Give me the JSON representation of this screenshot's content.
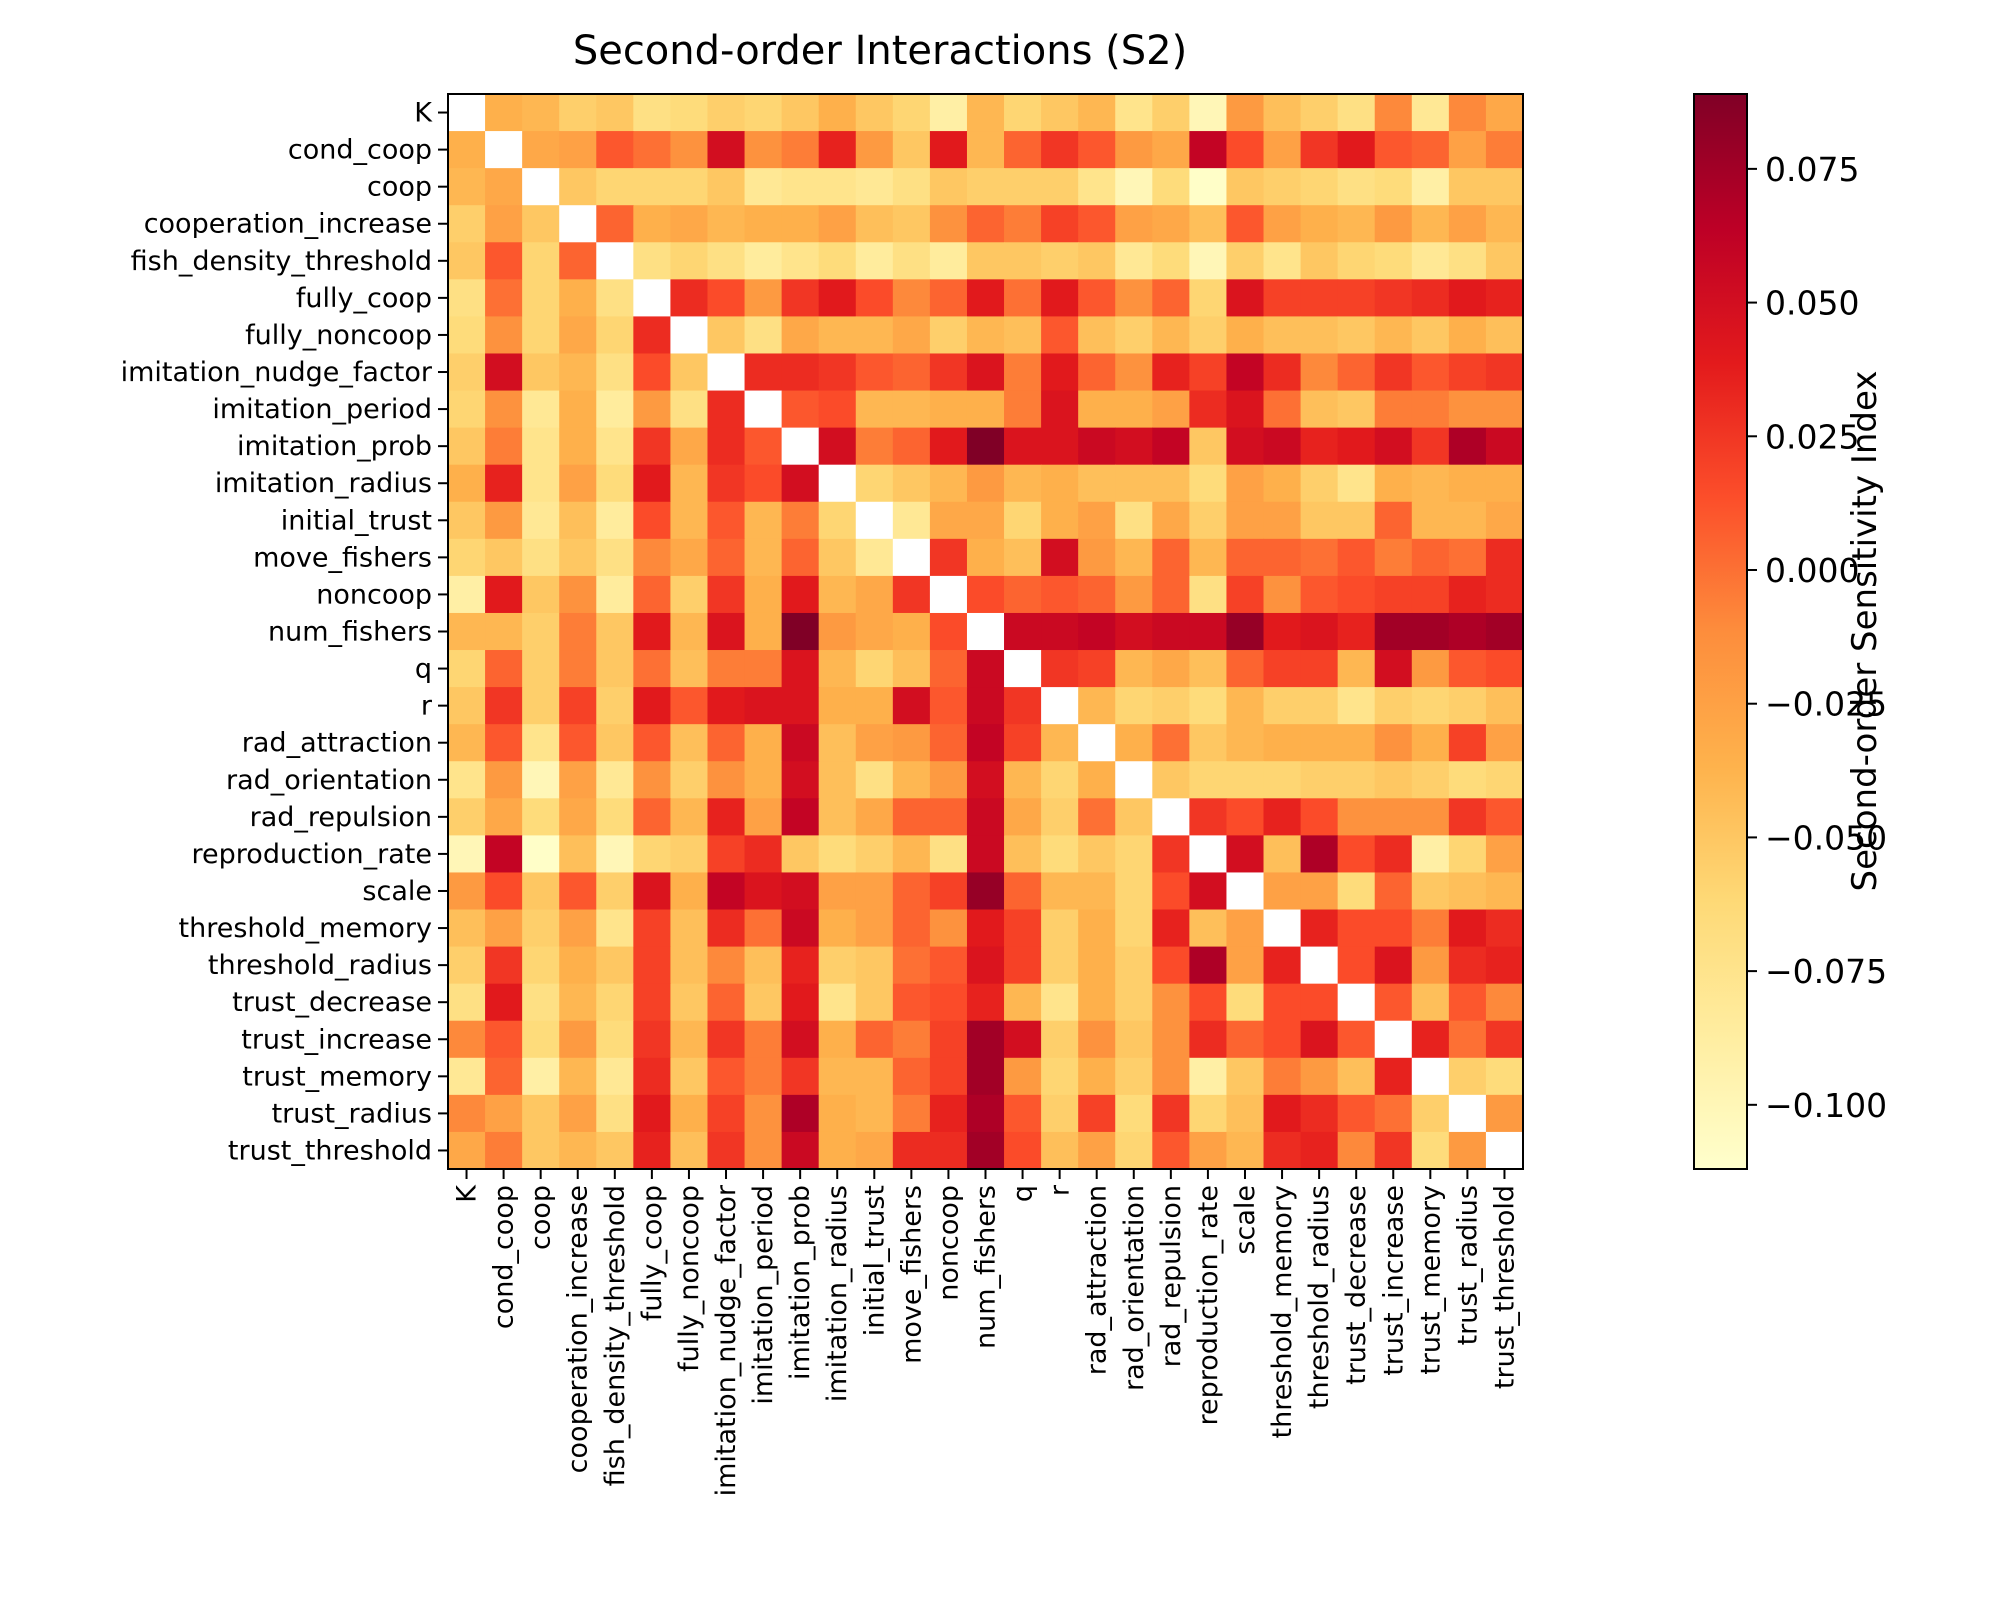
{
  "chart_data": {
    "type": "heatmap",
    "title": "Second-order Interactions (S2)",
    "xlabel": "",
    "ylabel": "",
    "colorbar_label": "Second-order Sensitivity Index",
    "colormap": "YlOrRd",
    "vmin": -0.112,
    "vmax": 0.089,
    "colorbar_ticks": [
      {
        "value": 0.075,
        "label": "0.075"
      },
      {
        "value": 0.05,
        "label": "0.050"
      },
      {
        "value": 0.025,
        "label": "0.025"
      },
      {
        "value": 0.0,
        "label": "0.000"
      },
      {
        "value": -0.025,
        "label": "−0.025"
      },
      {
        "value": -0.05,
        "label": "−0.050"
      },
      {
        "value": -0.075,
        "label": "−0.075"
      },
      {
        "value": -0.1,
        "label": "−0.100"
      }
    ],
    "labels": [
      "K",
      "cond_coop",
      "coop",
      "cooperation_increase",
      "fish_density_threshold",
      "fully_coop",
      "fully_noncoop",
      "imitation_nudge_factor",
      "imitation_period",
      "imitation_prob",
      "imitation_radius",
      "initial_trust",
      "move_fishers",
      "noncoop",
      "num_fishers",
      "q",
      "r",
      "rad_attraction",
      "rad_orientation",
      "rad_repulsion",
      "reproduction_rate",
      "scale",
      "threshold_memory",
      "threshold_radius",
      "trust_decrease",
      "trust_increase",
      "trust_memory",
      "trust_radius",
      "trust_threshold"
    ],
    "diagonal": "not shown (white)",
    "matrix": [
      [
        null,
        -0.035,
        -0.04,
        -0.055,
        -0.05,
        -0.07,
        -0.065,
        -0.055,
        -0.06,
        -0.05,
        -0.035,
        -0.05,
        -0.06,
        -0.09,
        -0.04,
        -0.06,
        -0.05,
        -0.04,
        -0.075,
        -0.055,
        -0.1,
        -0.02,
        -0.045,
        -0.055,
        -0.07,
        -0.01,
        -0.08,
        -0.01,
        -0.03
      ],
      [
        -0.035,
        null,
        -0.03,
        -0.025,
        0.01,
        0.0,
        -0.015,
        0.05,
        -0.015,
        -0.005,
        0.035,
        -0.02,
        -0.05,
        0.04,
        -0.04,
        0.005,
        0.025,
        0.01,
        -0.02,
        -0.03,
        0.06,
        0.015,
        -0.025,
        0.025,
        0.04,
        0.01,
        0.005,
        -0.025,
        -0.005
      ],
      [
        -0.04,
        -0.03,
        null,
        -0.05,
        -0.06,
        -0.06,
        -0.06,
        -0.05,
        -0.08,
        -0.075,
        -0.075,
        -0.08,
        -0.07,
        -0.05,
        -0.055,
        -0.055,
        -0.055,
        -0.075,
        -0.1,
        -0.065,
        -0.11,
        -0.05,
        -0.055,
        -0.06,
        -0.07,
        -0.065,
        -0.09,
        -0.05,
        -0.05
      ],
      [
        -0.055,
        -0.025,
        -0.05,
        null,
        0.005,
        -0.035,
        -0.03,
        -0.04,
        -0.035,
        -0.035,
        -0.025,
        -0.045,
        -0.05,
        -0.015,
        0.005,
        -0.005,
        0.02,
        0.01,
        -0.025,
        -0.03,
        -0.045,
        0.01,
        -0.025,
        -0.035,
        -0.04,
        -0.02,
        -0.04,
        -0.025,
        -0.04
      ],
      [
        -0.05,
        0.01,
        -0.06,
        0.005,
        null,
        -0.07,
        -0.06,
        -0.07,
        -0.085,
        -0.075,
        -0.065,
        -0.085,
        -0.07,
        -0.085,
        -0.05,
        -0.05,
        -0.055,
        -0.05,
        -0.08,
        -0.065,
        -0.1,
        -0.055,
        -0.075,
        -0.05,
        -0.06,
        -0.065,
        -0.08,
        -0.07,
        -0.05
      ],
      [
        -0.07,
        0.0,
        -0.06,
        -0.035,
        -0.07,
        null,
        0.03,
        0.015,
        -0.02,
        0.025,
        0.04,
        0.015,
        -0.01,
        0.005,
        0.04,
        0.0,
        0.04,
        0.01,
        -0.015,
        0.005,
        -0.06,
        0.045,
        0.02,
        0.02,
        0.02,
        0.025,
        0.03,
        0.04,
        0.035
      ],
      [
        -0.065,
        -0.015,
        -0.06,
        -0.03,
        -0.06,
        0.03,
        null,
        -0.05,
        -0.07,
        -0.03,
        -0.04,
        -0.04,
        -0.03,
        -0.055,
        -0.04,
        -0.045,
        0.01,
        -0.045,
        -0.055,
        -0.04,
        -0.055,
        -0.035,
        -0.045,
        -0.045,
        -0.05,
        -0.04,
        -0.05,
        -0.035,
        -0.045
      ],
      [
        -0.055,
        0.05,
        -0.05,
        -0.04,
        -0.07,
        0.015,
        -0.05,
        null,
        0.03,
        0.03,
        0.025,
        0.01,
        0.005,
        0.025,
        0.045,
        -0.005,
        0.04,
        0.005,
        -0.015,
        0.035,
        0.02,
        0.06,
        0.03,
        -0.01,
        0.005,
        0.025,
        0.01,
        0.02,
        0.025
      ],
      [
        -0.06,
        -0.015,
        -0.08,
        -0.035,
        -0.085,
        -0.02,
        -0.07,
        0.03,
        null,
        0.01,
        0.015,
        -0.04,
        -0.04,
        -0.035,
        -0.035,
        -0.005,
        0.045,
        -0.035,
        -0.035,
        -0.025,
        0.03,
        0.045,
        0.0,
        -0.045,
        -0.05,
        -0.005,
        -0.005,
        -0.015,
        -0.015
      ],
      [
        -0.05,
        -0.005,
        -0.075,
        -0.035,
        -0.075,
        0.025,
        -0.03,
        0.03,
        0.01,
        null,
        0.05,
        -0.005,
        0.005,
        0.04,
        0.089,
        0.045,
        0.045,
        0.055,
        0.05,
        0.06,
        -0.05,
        0.05,
        0.055,
        0.035,
        0.04,
        0.05,
        0.025,
        0.07,
        0.055
      ],
      [
        -0.035,
        0.035,
        -0.075,
        -0.025,
        -0.065,
        0.04,
        -0.04,
        0.025,
        0.015,
        0.05,
        null,
        -0.06,
        -0.05,
        -0.04,
        -0.02,
        -0.04,
        -0.035,
        -0.045,
        -0.045,
        -0.045,
        -0.065,
        -0.025,
        -0.035,
        -0.055,
        -0.075,
        -0.035,
        -0.04,
        -0.035,
        -0.035
      ],
      [
        -0.05,
        -0.02,
        -0.08,
        -0.045,
        -0.085,
        0.015,
        -0.04,
        0.01,
        -0.04,
        -0.005,
        -0.06,
        null,
        -0.08,
        -0.03,
        -0.03,
        -0.06,
        -0.035,
        -0.025,
        -0.07,
        -0.03,
        -0.055,
        -0.025,
        -0.025,
        -0.05,
        -0.05,
        0.005,
        -0.04,
        -0.04,
        -0.03
      ],
      [
        -0.06,
        -0.05,
        -0.07,
        -0.05,
        -0.07,
        -0.01,
        -0.03,
        0.005,
        -0.04,
        0.005,
        -0.05,
        -0.08,
        null,
        0.025,
        -0.035,
        -0.045,
        0.05,
        -0.02,
        -0.04,
        0.005,
        -0.04,
        0.005,
        0.005,
        0.0,
        0.01,
        -0.005,
        0.005,
        0.0,
        0.03
      ],
      [
        -0.09,
        0.04,
        -0.05,
        -0.015,
        -0.085,
        0.005,
        -0.055,
        0.025,
        -0.035,
        0.04,
        -0.04,
        -0.03,
        0.025,
        null,
        0.015,
        0.005,
        0.01,
        0.005,
        -0.02,
        0.005,
        -0.07,
        0.02,
        -0.015,
        0.01,
        0.015,
        0.02,
        0.02,
        0.035,
        0.03
      ],
      [
        -0.04,
        -0.04,
        -0.055,
        -0.005,
        -0.05,
        0.04,
        -0.04,
        0.045,
        -0.035,
        0.089,
        -0.02,
        -0.03,
        -0.035,
        0.015,
        null,
        0.055,
        0.055,
        0.06,
        0.05,
        0.055,
        0.055,
        0.08,
        0.04,
        0.045,
        0.035,
        0.075,
        0.075,
        0.07,
        0.075
      ],
      [
        -0.06,
        0.005,
        -0.055,
        -0.005,
        -0.05,
        0.0,
        -0.045,
        -0.005,
        -0.005,
        0.045,
        -0.04,
        -0.06,
        -0.045,
        0.005,
        0.055,
        null,
        0.025,
        0.02,
        -0.04,
        -0.03,
        -0.045,
        0.005,
        0.02,
        0.02,
        -0.04,
        0.05,
        -0.02,
        0.01,
        0.015
      ],
      [
        -0.05,
        0.025,
        -0.055,
        0.02,
        -0.055,
        0.04,
        0.01,
        0.04,
        0.045,
        0.045,
        -0.035,
        -0.035,
        0.05,
        0.01,
        0.055,
        0.025,
        null,
        -0.04,
        -0.06,
        -0.055,
        -0.065,
        -0.04,
        -0.055,
        -0.055,
        -0.075,
        -0.055,
        -0.06,
        -0.055,
        -0.045
      ],
      [
        -0.04,
        0.01,
        -0.075,
        0.01,
        -0.05,
        0.01,
        -0.045,
        0.005,
        -0.035,
        0.055,
        -0.045,
        -0.025,
        -0.02,
        0.005,
        0.06,
        0.02,
        -0.04,
        null,
        -0.035,
        0.0,
        -0.05,
        -0.04,
        -0.035,
        -0.035,
        -0.035,
        -0.015,
        -0.035,
        0.02,
        -0.025
      ],
      [
        -0.075,
        -0.02,
        -0.1,
        -0.025,
        -0.08,
        -0.015,
        -0.055,
        -0.015,
        -0.035,
        0.05,
        -0.045,
        -0.07,
        -0.04,
        -0.02,
        0.05,
        -0.04,
        -0.06,
        -0.035,
        null,
        -0.05,
        -0.06,
        -0.06,
        -0.06,
        -0.055,
        -0.055,
        -0.05,
        -0.055,
        -0.065,
        -0.06
      ],
      [
        -0.055,
        -0.03,
        -0.065,
        -0.03,
        -0.065,
        0.005,
        -0.04,
        0.035,
        -0.025,
        0.06,
        -0.045,
        -0.03,
        0.005,
        0.005,
        0.055,
        -0.03,
        -0.055,
        0.0,
        -0.05,
        null,
        0.025,
        0.015,
        0.035,
        0.015,
        -0.015,
        -0.015,
        -0.015,
        0.025,
        0.01
      ],
      [
        -0.1,
        0.06,
        -0.11,
        -0.045,
        -0.1,
        -0.06,
        -0.055,
        0.02,
        0.03,
        -0.05,
        -0.065,
        -0.055,
        -0.04,
        -0.07,
        0.055,
        -0.045,
        -0.065,
        -0.05,
        -0.06,
        0.025,
        null,
        0.05,
        -0.045,
        0.07,
        0.015,
        0.03,
        -0.09,
        -0.06,
        -0.025
      ],
      [
        -0.02,
        0.015,
        -0.05,
        0.01,
        -0.055,
        0.045,
        -0.035,
        0.06,
        0.045,
        0.05,
        -0.025,
        -0.025,
        0.005,
        0.02,
        0.08,
        0.005,
        -0.04,
        -0.04,
        -0.06,
        0.015,
        0.05,
        null,
        -0.025,
        -0.025,
        -0.065,
        0.005,
        -0.05,
        -0.045,
        -0.04
      ],
      [
        -0.045,
        -0.025,
        -0.055,
        -0.025,
        -0.075,
        0.02,
        -0.045,
        0.03,
        0.0,
        0.055,
        -0.035,
        -0.025,
        0.005,
        -0.015,
        0.04,
        0.02,
        -0.055,
        -0.035,
        -0.06,
        0.035,
        -0.045,
        -0.025,
        null,
        0.035,
        0.015,
        0.015,
        -0.005,
        0.04,
        0.03
      ],
      [
        -0.055,
        0.025,
        -0.06,
        -0.035,
        -0.05,
        0.02,
        -0.045,
        -0.01,
        -0.045,
        0.035,
        -0.055,
        -0.05,
        0.0,
        0.01,
        0.045,
        0.02,
        -0.055,
        -0.035,
        -0.055,
        0.015,
        0.07,
        -0.025,
        0.035,
        null,
        0.015,
        0.045,
        -0.02,
        0.03,
        0.035
      ],
      [
        -0.07,
        0.04,
        -0.07,
        -0.04,
        -0.06,
        0.02,
        -0.05,
        0.005,
        -0.05,
        0.04,
        -0.075,
        -0.05,
        0.01,
        0.015,
        0.035,
        -0.04,
        -0.075,
        -0.035,
        -0.055,
        -0.015,
        0.015,
        -0.065,
        0.015,
        0.015,
        null,
        0.01,
        -0.045,
        0.01,
        -0.01
      ],
      [
        -0.01,
        0.01,
        -0.065,
        -0.02,
        -0.065,
        0.025,
        -0.04,
        0.025,
        -0.005,
        0.05,
        -0.035,
        0.005,
        -0.005,
        0.02,
        0.075,
        0.05,
        -0.055,
        -0.015,
        -0.05,
        -0.015,
        0.03,
        0.005,
        0.015,
        0.045,
        0.01,
        null,
        0.035,
        0.0,
        0.025
      ],
      [
        -0.08,
        0.005,
        -0.09,
        -0.04,
        -0.08,
        0.03,
        -0.05,
        0.01,
        -0.005,
        0.025,
        -0.04,
        -0.04,
        0.005,
        0.02,
        0.075,
        -0.02,
        -0.06,
        -0.035,
        -0.055,
        -0.015,
        -0.09,
        -0.05,
        -0.005,
        -0.02,
        -0.045,
        0.035,
        null,
        -0.055,
        -0.065
      ],
      [
        -0.01,
        -0.025,
        -0.05,
        -0.025,
        -0.07,
        0.04,
        -0.035,
        0.02,
        -0.015,
        0.07,
        -0.035,
        -0.04,
        -0.005,
        0.035,
        0.07,
        0.01,
        -0.055,
        0.02,
        -0.065,
        0.025,
        -0.06,
        -0.045,
        0.04,
        0.03,
        0.01,
        0.0,
        -0.055,
        null,
        -0.02
      ],
      [
        -0.03,
        -0.005,
        -0.05,
        -0.04,
        -0.05,
        0.035,
        -0.045,
        0.025,
        -0.015,
        0.055,
        -0.035,
        -0.03,
        0.03,
        0.03,
        0.075,
        0.015,
        -0.045,
        -0.025,
        -0.06,
        0.01,
        -0.025,
        -0.04,
        0.03,
        0.035,
        -0.01,
        0.025,
        -0.065,
        -0.02,
        null
      ]
    ]
  }
}
